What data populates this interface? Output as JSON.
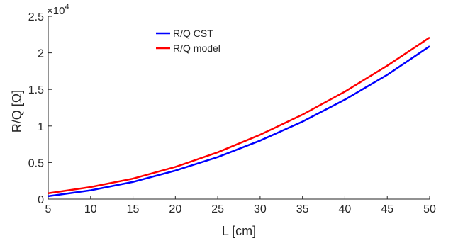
{
  "chart_data": {
    "type": "line",
    "xlabel": "L [cm]",
    "ylabel": "R/Q [Ω]",
    "exponent_label": "×10",
    "exponent_power": "4",
    "xlim": [
      5,
      50
    ],
    "ylim": [
      0,
      2.5
    ],
    "xticks": [
      5,
      10,
      15,
      20,
      25,
      30,
      35,
      40,
      45,
      50
    ],
    "yticks": [
      0,
      0.5,
      1,
      1.5,
      2,
      2.5
    ],
    "ytick_labels": [
      "0",
      "0.5",
      "1",
      "1.5",
      "2",
      "2.5"
    ],
    "grid": false,
    "legend_position": "top-left",
    "x": [
      5,
      10,
      15,
      20,
      25,
      30,
      35,
      40,
      45,
      50
    ],
    "series": [
      {
        "name": "R/Q CST",
        "color": "#0000ff",
        "values": [
          0.04,
          0.12,
          0.235,
          0.39,
          0.575,
          0.8,
          1.06,
          1.36,
          1.7,
          2.09
        ]
      },
      {
        "name": "R/Q model",
        "color": "#ff0000",
        "values": [
          0.08,
          0.165,
          0.28,
          0.44,
          0.64,
          0.88,
          1.155,
          1.47,
          1.825,
          2.21
        ]
      }
    ]
  }
}
